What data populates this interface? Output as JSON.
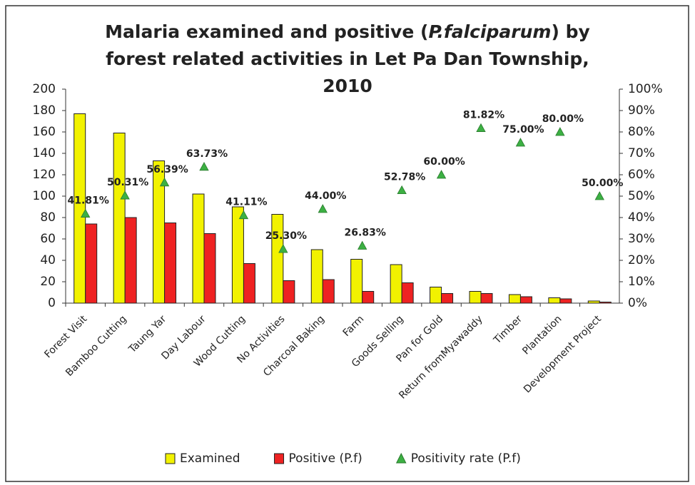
{
  "chart_data": {
    "type": "bar",
    "title": [
      "Malaria examined and positive (",
      "P.falciparum",
      ") by forest related activities in Let Pa Dan Township, 2010"
    ],
    "categories": [
      "Forest Visit",
      "Bamboo Cutting",
      "Taung Yar",
      "Day Labour",
      "Wood Cutting",
      "No Activities",
      "Charcoal Baking",
      "Farm",
      "Goods Selling",
      "Pan for Gold",
      "Return fromMyawaddy",
      "Timber",
      "Plantation",
      "Development Project"
    ],
    "series": [
      {
        "name": "Examined",
        "color": "#f2f200",
        "values": [
          177,
          159,
          133,
          102,
          90,
          83,
          50,
          41,
          36,
          15,
          11,
          8,
          5,
          2
        ]
      },
      {
        "name": "Positive (P.f)",
        "color": "#ee2222",
        "values": [
          74,
          80,
          75,
          65,
          37,
          21,
          22,
          11,
          19,
          9,
          9,
          6,
          4,
          1
        ]
      },
      {
        "name": "Positivity rate (P.f)",
        "color": "#3cb043",
        "axis": "y2",
        "type": "scatter",
        "values": [
          41.81,
          50.31,
          56.39,
          63.73,
          41.11,
          25.3,
          44.0,
          26.83,
          52.78,
          60.0,
          81.82,
          75.0,
          80.0,
          50.0
        ],
        "value_labels": [
          "41.81%",
          "50.31%",
          "56.39%",
          "63.73%",
          "41.11%",
          "25.30%",
          "44.00%",
          "26.83%",
          "52.78%",
          "60.00%",
          "81.82%",
          "75.00%",
          "80.00%",
          "50.00%"
        ]
      }
    ],
    "ylim": [
      0,
      200
    ],
    "yticks": [
      0,
      20,
      40,
      60,
      80,
      100,
      120,
      140,
      160,
      180,
      200
    ],
    "y2lim": [
      0,
      100
    ],
    "y2ticks": [
      {
        "value": 0,
        "label": "0%"
      },
      {
        "value": 10,
        "label": "10%"
      },
      {
        "value": 20,
        "label": "20%"
      },
      {
        "value": 30,
        "label": "30%"
      },
      {
        "value": 40,
        "label": "40%"
      },
      {
        "value": 50,
        "label": "50%"
      },
      {
        "value": 60,
        "label": "60%"
      },
      {
        "value": 70,
        "label": "70%"
      },
      {
        "value": 80,
        "label": "80%"
      },
      {
        "value": 90,
        "label": "90%"
      },
      {
        "value": 100,
        "label": "100%"
      }
    ],
    "legend": "bottom"
  }
}
